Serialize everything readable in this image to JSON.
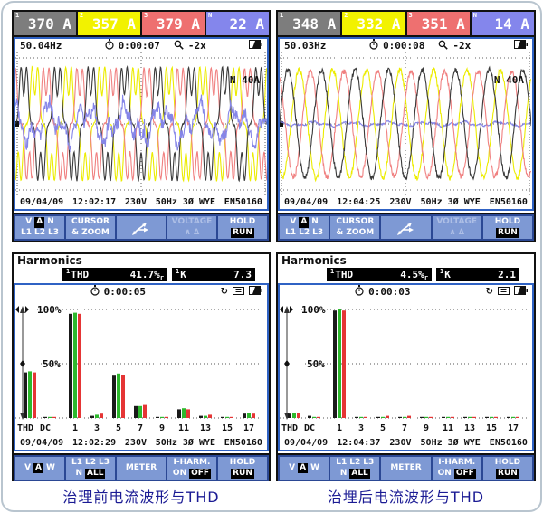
{
  "captions": {
    "left": "治理前电流波形与THD",
    "right": "治埋后电流波形与THD"
  },
  "icons": {
    "clock-icon": "stopwatch",
    "magnifier-icon": "magnifier",
    "battery-icon": "battery-half",
    "hold-icon": "↻",
    "memory-card-icon": "card",
    "branch-arrows-icon": "three-way-arrows",
    "axis-marker-icon": "◀▶",
    "trigger-marker-icon": "square"
  },
  "colors": {
    "screen_border": "#2f62c4",
    "softkey_button": "#7e99d4",
    "softkey_bar": "#2b4894",
    "reading_l1": "#7d7d7d",
    "reading_l2": "#f2f200",
    "reading_l3": "#ee7070",
    "reading_n": "#8486ec",
    "caption_text": "#1b1b94",
    "bar_l1": "#1a1a1a",
    "bar_l2": "#2db82d",
    "bar_l3": "#e53535"
  },
  "scope_panels": [
    {
      "id": "before",
      "readings": [
        {
          "ch": "1",
          "value": "370 A",
          "bg": "#7d7d7d"
        },
        {
          "ch": "2",
          "value": "357 A",
          "bg": "#f2f200"
        },
        {
          "ch": "3",
          "value": "379 A",
          "bg": "#ee7070"
        },
        {
          "ch": "N",
          "value": "22 A",
          "bg": "#8486ec"
        }
      ],
      "freq": "50.04Hz",
      "elapsed": "0:00:07",
      "zoom": "-2x",
      "range_label": "N  40A",
      "status": {
        "date": "09/04/09",
        "time": "12:02:17",
        "voltage": "230V",
        "config": "50Hz 3Ø WYE",
        "standard": "EN50160"
      }
    },
    {
      "id": "after",
      "readings": [
        {
          "ch": "1",
          "value": "348 A",
          "bg": "#7d7d7d"
        },
        {
          "ch": "2",
          "value": "332 A",
          "bg": "#f2f200"
        },
        {
          "ch": "3",
          "value": "351 A",
          "bg": "#ee7070"
        },
        {
          "ch": "N",
          "value": "14 A",
          "bg": "#8486ec"
        }
      ],
      "freq": "50.03Hz",
      "elapsed": "0:00:08",
      "zoom": "-2x",
      "range_label": "N  40A",
      "status": {
        "date": "09/04/09",
        "time": "12:04:25",
        "voltage": "230V",
        "config": "50Hz 3Ø WYE",
        "standard": "EN50160"
      }
    }
  ],
  "harmonic_panels": [
    {
      "id": "before",
      "title": "Harmonics",
      "ch": "1",
      "thd_label": "THD",
      "thd_value": "41.7%",
      "suffix": "r",
      "k_label": "K",
      "k_value": "7.3",
      "elapsed": "0:00:05",
      "axis_top": "100%",
      "axis_mid": "50%",
      "status": {
        "date": "09/04/09",
        "time": "12:02:29",
        "voltage": "230V",
        "config": "50Hz 3Ø WYE",
        "standard": "EN50160"
      }
    },
    {
      "id": "after",
      "title": "Harmonics",
      "ch": "1",
      "thd_label": "THD",
      "thd_value": "4.5%",
      "suffix": "r",
      "k_label": "K",
      "k_value": "2.1",
      "elapsed": "0:00:03",
      "axis_top": "100%",
      "axis_mid": "50%",
      "status": {
        "date": "09/04/09",
        "time": "12:04:37",
        "voltage": "230V",
        "config": "50Hz 3Ø WYE",
        "standard": "EN50160"
      }
    }
  ],
  "scope_softkeys": [
    {
      "name": "input-select",
      "rows": [
        [
          "V",
          "[A]",
          "N"
        ],
        [
          "L1",
          "L2",
          "L3"
        ]
      ]
    },
    {
      "name": "cursor-zoom",
      "rows": [
        [
          "CURSOR"
        ],
        [
          "& ZOOM"
        ]
      ]
    },
    {
      "name": "scope-menu",
      "icon": "branch-arrows-icon"
    },
    {
      "name": "voltage",
      "disabled": true,
      "rows": [
        [
          "VOLTAGE"
        ],
        [
          "∧",
          "∆"
        ]
      ]
    },
    {
      "name": "hold-run",
      "rows": [
        [
          "HOLD"
        ],
        [
          "[RUN]"
        ]
      ]
    }
  ],
  "harmonic_softkeys": [
    {
      "name": "units",
      "rows": [
        [
          "V",
          "[A]",
          "W"
        ]
      ]
    },
    {
      "name": "phase-select",
      "rows": [
        [
          "L1",
          "L2",
          "L3"
        ],
        [
          "N",
          "[ALL]"
        ]
      ]
    },
    {
      "name": "meter",
      "rows": [
        [
          "METER"
        ]
      ]
    },
    {
      "name": "i-harm",
      "rows": [
        [
          "I-HARM."
        ],
        [
          "ON",
          "[OFF]"
        ]
      ]
    },
    {
      "name": "hold-run",
      "rows": [
        [
          "HOLD"
        ],
        [
          "[RUN]"
        ]
      ]
    }
  ],
  "chart_data": [
    {
      "id": "waveforms_before",
      "type": "line",
      "title": "Phase current waveforms before treatment (distorted, high THD)",
      "x_span_cycles": 7.5,
      "range_label": "N  40A",
      "series": [
        {
          "name": "L2",
          "color": "#ecec00",
          "amplitude": 1.0,
          "phase_deg": -120,
          "h5": 0.3,
          "h7": 0.09,
          "jitter": 0.02
        },
        {
          "name": "L3",
          "color": "#f08080",
          "amplitude": 0.98,
          "phase_deg": 120,
          "h5": 0.3,
          "h7": 0.09,
          "jitter": 0.03
        },
        {
          "name": "L1",
          "color": "#3a3a3a",
          "amplitude": 1.0,
          "phase_deg": 0,
          "h5": 0.3,
          "h7": 0.09,
          "jitter": 0.02
        },
        {
          "name": "N",
          "color": "#8585e8",
          "neutral": true,
          "amplitude": 0.5,
          "seed": 3,
          "spikes": true
        }
      ]
    },
    {
      "id": "waveforms_after",
      "type": "line",
      "title": "Phase current waveforms after treatment (clean sinusoids, low THD)",
      "x_span_cycles": 7.5,
      "range_label": "N  40A",
      "series": [
        {
          "name": "N",
          "color": "#8585e8",
          "neutral": true,
          "amplitude": 0.06,
          "seed": 5,
          "spikes": false
        },
        {
          "name": "L2",
          "color": "#ecec00",
          "amplitude": 1.15,
          "phase_deg": -120,
          "h5": 0,
          "h7": 0,
          "jitter": 0.05
        },
        {
          "name": "L3",
          "color": "#f08080",
          "amplitude": 1.12,
          "phase_deg": 120,
          "h5": 0,
          "h7": 0,
          "jitter": 0.05
        },
        {
          "name": "L1",
          "color": "#3a3a3a",
          "amplitude": 1.15,
          "phase_deg": 0,
          "h5": 0,
          "h7": 0,
          "jitter": 0.05
        }
      ]
    },
    {
      "id": "harmonics_before",
      "type": "bar",
      "title": "Current harmonic spectrum before treatment (% of fundamental)",
      "categories": [
        "THD",
        "DC",
        "1",
        "3",
        "5",
        "7",
        "9",
        "11",
        "13",
        "15",
        "17"
      ],
      "ylim": [
        0,
        110
      ],
      "gridlines": [
        100,
        50
      ],
      "series": [
        {
          "name": "L1",
          "color": "#1a1a1a",
          "values": [
            42,
            1,
            96,
            2,
            39,
            11,
            1,
            8,
            2,
            1,
            4
          ]
        },
        {
          "name": "L2",
          "color": "#2db82d",
          "values": [
            43,
            1,
            97,
            3,
            41,
            11,
            1,
            9,
            2,
            1,
            5
          ]
        },
        {
          "name": "L3",
          "color": "#e53535",
          "values": [
            42,
            1,
            96,
            4,
            40,
            12,
            1,
            8,
            3,
            1,
            4
          ]
        }
      ]
    },
    {
      "id": "harmonics_after",
      "type": "bar",
      "title": "Current harmonic spectrum after treatment (% of fundamental)",
      "categories": [
        "THD",
        "DC",
        "1",
        "3",
        "5",
        "7",
        "9",
        "11",
        "13",
        "15",
        "17"
      ],
      "ylim": [
        0,
        110
      ],
      "gridlines": [
        100,
        50
      ],
      "series": [
        {
          "name": "L1",
          "color": "#1a1a1a",
          "values": [
            4,
            2,
            99,
            1,
            1,
            1,
            1,
            1,
            1,
            1,
            1
          ]
        },
        {
          "name": "L2",
          "color": "#2db82d",
          "values": [
            5,
            1,
            100,
            1,
            1,
            1,
            1,
            1,
            1,
            1,
            1
          ]
        },
        {
          "name": "L3",
          "color": "#e53535",
          "values": [
            5,
            1,
            99,
            1,
            2,
            2,
            1,
            1,
            1,
            1,
            1
          ]
        }
      ]
    }
  ]
}
